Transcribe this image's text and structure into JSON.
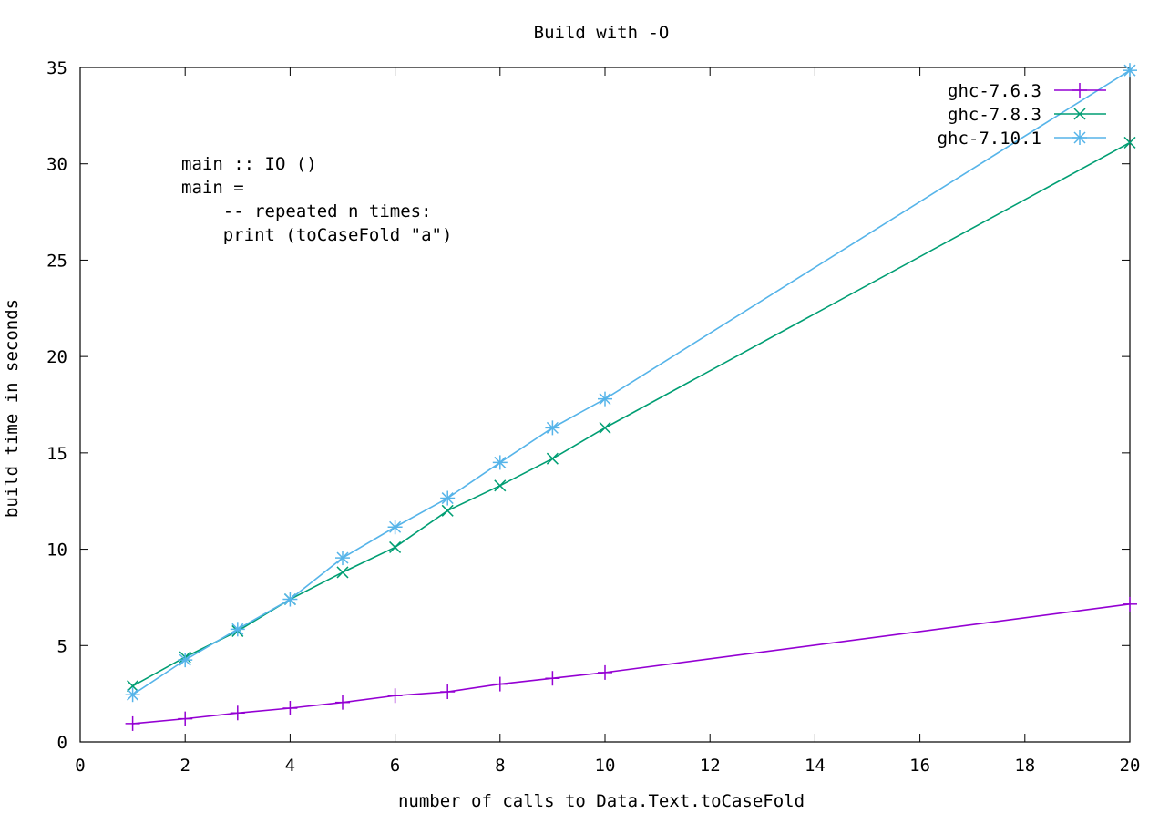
{
  "chart_data": {
    "type": "line",
    "title": "Build with -O",
    "xlabel": "number of calls to Data.Text.toCaseFold",
    "ylabel": "build time in seconds",
    "xlim": [
      0,
      20
    ],
    "ylim": [
      0,
      35
    ],
    "xticks": [
      0,
      2,
      4,
      6,
      8,
      10,
      12,
      14,
      16,
      18,
      20
    ],
    "yticks": [
      0,
      5,
      10,
      15,
      20,
      25,
      30,
      35
    ],
    "grid": false,
    "legend_position": "top-right",
    "annotation": [
      "main :: IO ()",
      "main =",
      "    -- repeated n times:",
      "    print (toCaseFold \"a\")"
    ],
    "series": [
      {
        "name": "ghc-7.6.3",
        "color": "#9400d3",
        "marker": "plus",
        "x": [
          1,
          2,
          3,
          4,
          5,
          6,
          7,
          8,
          9,
          10,
          20
        ],
        "y": [
          0.95,
          1.2,
          1.5,
          1.75,
          2.05,
          2.4,
          2.6,
          3.0,
          3.3,
          3.6,
          7.15
        ]
      },
      {
        "name": "ghc-7.8.3",
        "color": "#009e73",
        "marker": "cross",
        "x": [
          1,
          2,
          3,
          4,
          5,
          6,
          7,
          8,
          9,
          10,
          20
        ],
        "y": [
          2.9,
          4.4,
          5.75,
          7.4,
          8.8,
          10.1,
          12.0,
          13.3,
          14.7,
          16.3,
          31.1
        ]
      },
      {
        "name": "ghc-7.10.1",
        "color": "#56b4e9",
        "marker": "star",
        "x": [
          1,
          2,
          3,
          4,
          5,
          6,
          7,
          8,
          9,
          10,
          20
        ],
        "y": [
          2.45,
          4.25,
          5.85,
          7.4,
          9.55,
          11.15,
          12.65,
          14.5,
          16.3,
          17.8,
          34.85
        ]
      }
    ]
  }
}
